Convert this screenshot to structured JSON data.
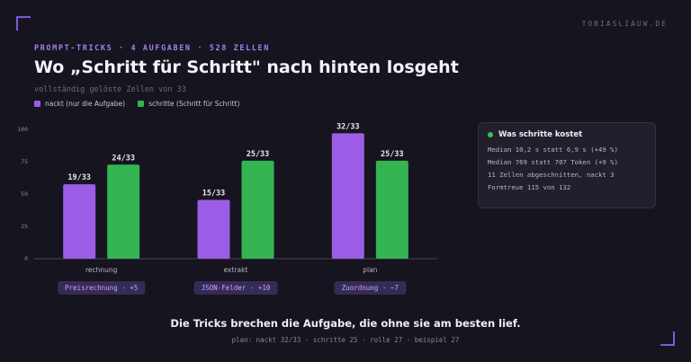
{
  "site": "TOBIASLIAUW.DE",
  "header": {
    "eyebrow": "PROMPT-TRICKS · 4 AUFGABEN · 528 ZELLEN",
    "title": "Wo „Schritt für Schritt\" nach hinten losgeht",
    "subtitle": "vollständig gelöste Zellen von 33"
  },
  "legend": [
    {
      "label": "nackt (nur die Aufgabe)",
      "color": "#9b5de5"
    },
    {
      "label": "schritte (Schritt für Schritt)",
      "color": "#34b552"
    }
  ],
  "chart_data": {
    "type": "bar",
    "categories": [
      "rechnung",
      "extrakt",
      "plan"
    ],
    "series": [
      {
        "name": "nackt (nur die Aufgabe)",
        "values": [
          19,
          15,
          32
        ],
        "labels": [
          "19/33",
          "15/33",
          "32/33"
        ],
        "color": "#9b5de5"
      },
      {
        "name": "schritte (Schritt für Schritt)",
        "values": [
          24,
          25,
          25
        ],
        "labels": [
          "24/33",
          "25/33",
          "25/33"
        ],
        "color": "#34b552"
      }
    ],
    "yticks": [
      0,
      25,
      50,
      75,
      100
    ],
    "ylim": [
      0,
      100
    ],
    "max_cells": 33,
    "grid": false,
    "badges": [
      "Preisrechnung · +5",
      "JSON-Felder · +10",
      "Zuordnung · −7"
    ]
  },
  "panel": {
    "title": "Was schritte kostet",
    "lines": [
      "Median 10,2 s statt 6,9 s (+49 %)",
      "Median 769 statt 707 Token (+9 %)",
      "11 Zellen abgeschnitten, nackt 3",
      "Formtreue 115 von 132"
    ]
  },
  "footer": {
    "title": "Die Tricks brechen die Aufgabe, die ohne sie am besten lief.",
    "subtitle": "plan: nackt 32/33 · schritte 25 · rolle 27 · beispiel 27"
  }
}
